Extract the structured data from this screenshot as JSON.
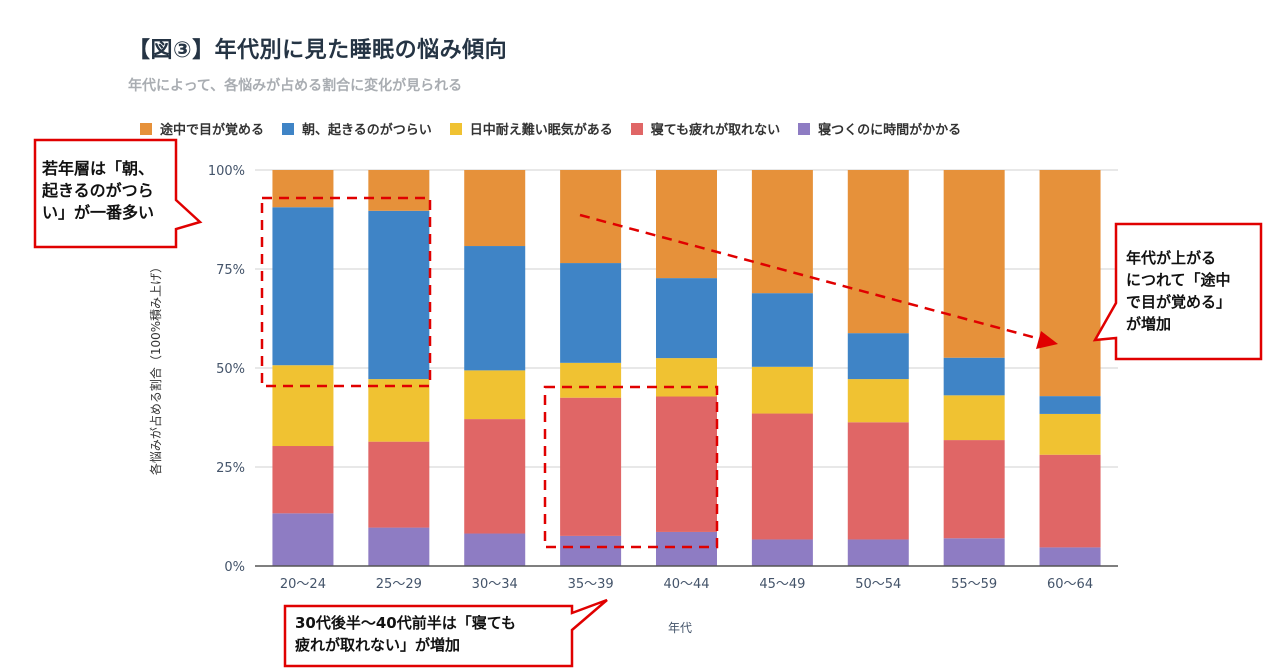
{
  "chart_data": {
    "type": "bar",
    "stacked": "100%",
    "title": "【図③】年代別に見た睡眠の悩み傾向",
    "subtitle": "年代によって、各悩みが占める割合に変化が見られる",
    "xlabel": "年代",
    "ylabel": "各悩みが占める割合（100%積み上げ）",
    "ylim": [
      0,
      100
    ],
    "yticks": [
      "0%",
      "25%",
      "50%",
      "75%",
      "100%"
    ],
    "grid": true,
    "legend_position": "top",
    "categories": [
      "20〜24",
      "25〜29",
      "30〜34",
      "35〜39",
      "40〜44",
      "45〜49",
      "50〜54",
      "55〜59",
      "60〜64"
    ],
    "series": [
      {
        "name": "途中で目が覚める",
        "color": "#e6913a",
        "values": [
          9.4,
          10.3,
          19.2,
          23.5,
          27.3,
          31.1,
          41.2,
          47.4,
          57.1
        ]
      },
      {
        "name": "朝、起きるのがつらい",
        "color": "#3f84c6",
        "values": [
          39.9,
          42.5,
          31.4,
          25.2,
          20.2,
          18.6,
          11.6,
          9.5,
          4.5
        ]
      },
      {
        "name": "日中耐え難い眠気がある",
        "color": "#f0c232",
        "values": [
          20.4,
          15.8,
          12.3,
          8.8,
          9.7,
          11.8,
          10.9,
          11.3,
          10.3
        ]
      },
      {
        "name": "寝ても疲れが取れない",
        "color": "#e06666",
        "values": [
          17.0,
          21.7,
          28.9,
          34.9,
          34.2,
          31.8,
          29.6,
          24.8,
          23.4
        ]
      },
      {
        "name": "寝つくのに時間がかかる",
        "color": "#8e7cc3",
        "values": [
          13.3,
          9.7,
          8.2,
          7.6,
          8.6,
          6.7,
          6.7,
          7.0,
          4.7
        ]
      }
    ],
    "annotations": [
      "若年層は「朝、起きるのがつらい」が一番多い",
      "年代が上がるにつれて「途中で目が覚める」が増加",
      "30代後半〜40代前半は「寝ても疲れが取れない」が増加"
    ]
  },
  "callouts": {
    "young": [
      "若年層は「朝、",
      "起きるのがつら",
      "い」が一番多い"
    ],
    "age": [
      "年代が上がる",
      "につれて「途中",
      "で目が覚める」",
      "が増加"
    ],
    "middle": [
      "30代後半〜40代前半は「寝ても",
      "疲れが取れない」が増加"
    ]
  },
  "colors": {
    "annotation": "#e00000",
    "axis_text": "#44546a"
  }
}
